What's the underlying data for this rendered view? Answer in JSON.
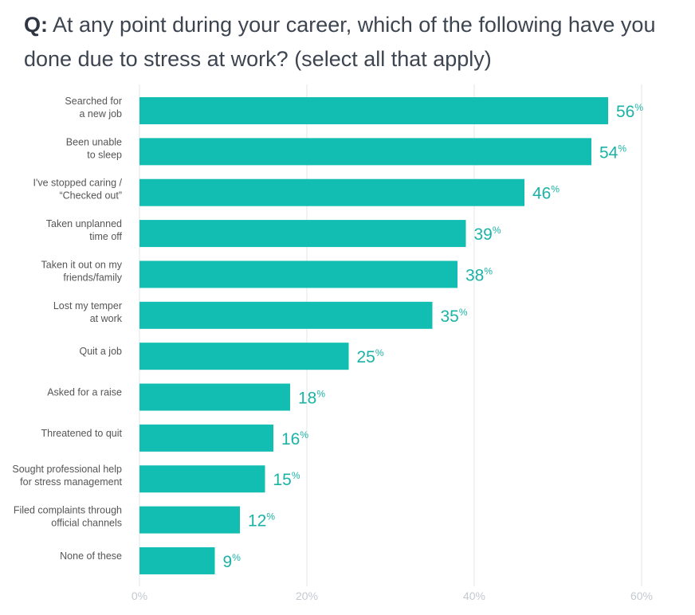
{
  "title": {
    "prefix": "Q:",
    "text": "At any point during your career, which of the following have you done due to stress at work? (select all that apply)"
  },
  "colors": {
    "bar": "#12bdb2",
    "value_text": "#1bb3a6",
    "grid": "#eceff1",
    "tick_text": "#c3c9cf"
  },
  "chart_data": {
    "type": "bar",
    "orientation": "horizontal",
    "categories": [
      [
        "Searched for",
        "a new job"
      ],
      [
        "Been unable",
        "to sleep"
      ],
      [
        "I've stopped caring /",
        "“Checked out”"
      ],
      [
        "Taken unplanned",
        "time off"
      ],
      [
        "Taken it out on my",
        "friends/family"
      ],
      [
        "Lost my temper",
        "at work"
      ],
      [
        "Quit a job"
      ],
      [
        "Asked for a raise"
      ],
      [
        "Threatened to quit"
      ],
      [
        "Sought professional help",
        "for stress management"
      ],
      [
        "Filed complaints through",
        "official channels"
      ],
      [
        "None of these"
      ]
    ],
    "values": [
      56,
      54,
      46,
      39,
      38,
      35,
      25,
      18,
      16,
      15,
      12,
      9
    ],
    "value_suffix": "%",
    "xlim": [
      0,
      60
    ],
    "xticks": [
      "0%",
      "20%",
      "40%",
      "60%"
    ],
    "grid": true,
    "legend": "none"
  }
}
